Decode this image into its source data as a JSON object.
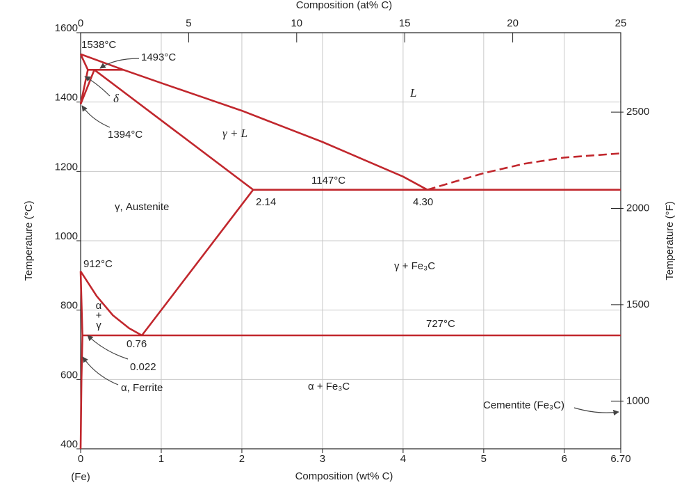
{
  "chart_data": {
    "type": "phase",
    "x_label": "Composition (wt% C)",
    "x2_label": "Composition (at% C)",
    "y_label": "Temperature (°C)",
    "y2_label": "Temperature (°F)",
    "x_origin_label": "(Fe)",
    "xlim": [
      0,
      6.7
    ],
    "xticks": [
      0,
      1,
      2,
      3,
      4,
      5,
      6,
      {
        "value": 6.7,
        "label": "6.70"
      }
    ],
    "x2lim": [
      0,
      25
    ],
    "x2ticks": [
      0,
      5,
      10,
      15,
      20,
      25
    ],
    "ylim": [
      400,
      1600
    ],
    "yticks": [
      400,
      600,
      800,
      1000,
      1200,
      1400,
      1600
    ],
    "y2lim": [
      752,
      2912
    ],
    "y2ticks": [
      1000,
      1500,
      2000,
      2500
    ],
    "grid": true,
    "color": "#c1272d",
    "series": [
      {
        "x": [
          0,
          0.09
        ],
        "y": [
          1538,
          1493
        ]
      },
      {
        "x": [
          0,
          0.53,
          1,
          1.5,
          2,
          2.5,
          3,
          3.5,
          4,
          4.3
        ],
        "y": [
          1538,
          1493,
          1455,
          1415,
          1375,
          1330,
          1285,
          1235,
          1185,
          1147
        ]
      },
      {
        "x": [
          0.09,
          0.53
        ],
        "y": [
          1493,
          1493
        ]
      },
      {
        "x": [
          0,
          0.09
        ],
        "y": [
          1394,
          1493
        ]
      },
      {
        "x": [
          0,
          0.17
        ],
        "y": [
          1394,
          1493
        ]
      },
      {
        "x": [
          0.17,
          2.14
        ],
        "y": [
          1493,
          1147
        ]
      },
      {
        "x": [
          2.14,
          6.7
        ],
        "y": [
          1147,
          1147
        ]
      },
      {
        "x": [
          4.3,
          5,
          5.5,
          6,
          6.7
        ],
        "y": [
          1147,
          1195,
          1222,
          1240,
          1252
        ],
        "dash": true
      },
      {
        "x": [
          0,
          0.2,
          0.4,
          0.6,
          0.76
        ],
        "y": [
          912,
          840,
          785,
          748,
          727
        ]
      },
      {
        "x": [
          0.76,
          2.14
        ],
        "y": [
          727,
          1147
        ]
      },
      {
        "x": [
          0.022,
          6.7
        ],
        "y": [
          727,
          727
        ]
      },
      {
        "x": [
          0,
          0.022
        ],
        "y": [
          912,
          727
        ]
      },
      {
        "x": [
          0.022,
          0.01,
          0
        ],
        "y": [
          727,
          600,
          400
        ]
      }
    ],
    "annotations": [
      "1538°C",
      "1493°C",
      "δ",
      "1394°C",
      "L",
      "γ + L",
      "γ, Austenite",
      "1147°C",
      "2.14",
      "4.30",
      "912°C",
      "α",
      "+",
      "γ",
      "γ + Fe₃C",
      "727°C",
      "0.76",
      "0.022",
      "α, Ferrite",
      "α + Fe₃C",
      "Cementite (Fe₃C)"
    ]
  }
}
